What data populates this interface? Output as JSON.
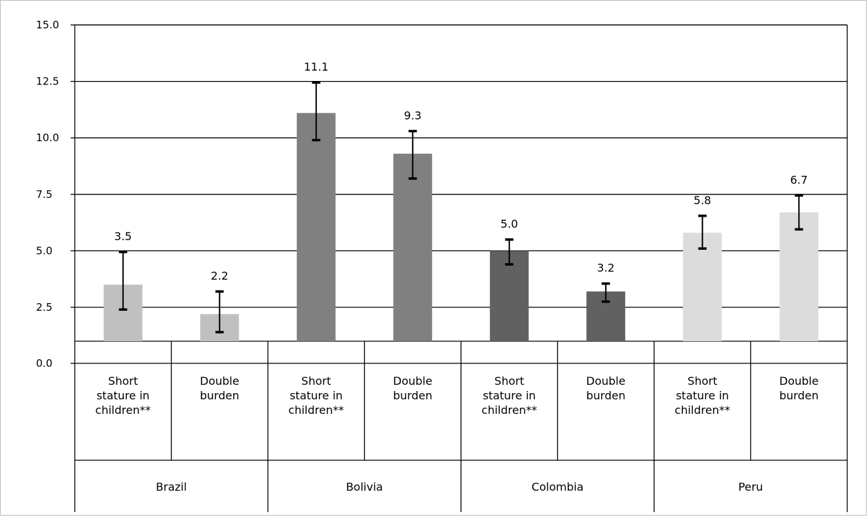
{
  "chart_data": {
    "type": "bar",
    "title": "",
    "xlabel": "",
    "ylabel": "",
    "ylim": [
      0,
      15
    ],
    "yticks": [
      "0.0",
      "2.5",
      "5.0",
      "7.5",
      "10.0",
      "12.5",
      "15.0"
    ],
    "ytick_values": [
      0,
      2.5,
      5.0,
      7.5,
      10.0,
      12.5,
      15.0
    ],
    "grid": true,
    "legend": "none",
    "groups": [
      {
        "name": "Brazil",
        "color": "#c0c0c0",
        "bars": [
          {
            "category": "Short stature in children**",
            "category_lines": [
              "Short",
              "stature in",
              "children**"
            ],
            "value": 3.5,
            "label": "3.5",
            "error_low": 2.4,
            "error_high": 4.95
          },
          {
            "category": "Double burden",
            "category_lines": [
              "Double",
              "burden"
            ],
            "value": 2.2,
            "label": "2.2",
            "error_low": 1.4,
            "error_high": 3.2
          }
        ]
      },
      {
        "name": "Bolivia",
        "color": "#808080",
        "bars": [
          {
            "category": "Short stature in children**",
            "category_lines": [
              "Short",
              "stature in",
              "children**"
            ],
            "value": 11.1,
            "label": "11.1",
            "error_low": 9.9,
            "error_high": 12.45
          },
          {
            "category": "Double burden",
            "category_lines": [
              "Double",
              "burden"
            ],
            "value": 9.3,
            "label": "9.3",
            "error_low": 8.2,
            "error_high": 10.3
          }
        ]
      },
      {
        "name": "Colombia",
        "color": "#616161",
        "bars": [
          {
            "category": "Short stature in children**",
            "category_lines": [
              "Short",
              "stature in",
              "children**"
            ],
            "value": 5.0,
            "label": "5.0",
            "error_low": 4.4,
            "error_high": 5.5
          },
          {
            "category": "Double burden",
            "category_lines": [
              "Double",
              "burden"
            ],
            "value": 3.2,
            "label": "3.2",
            "error_low": 2.75,
            "error_high": 3.55
          }
        ]
      },
      {
        "name": "Peru",
        "color": "#dcdcdc",
        "bars": [
          {
            "category": "Short stature in children**",
            "category_lines": [
              "Short",
              "stature in",
              "children**"
            ],
            "value": 5.8,
            "label": "5.8",
            "error_low": 5.1,
            "error_high": 6.55
          },
          {
            "category": "Double burden",
            "category_lines": [
              "Double",
              "burden"
            ],
            "value": 6.7,
            "label": "6.7",
            "error_low": 5.95,
            "error_high": 7.45
          }
        ]
      }
    ]
  }
}
